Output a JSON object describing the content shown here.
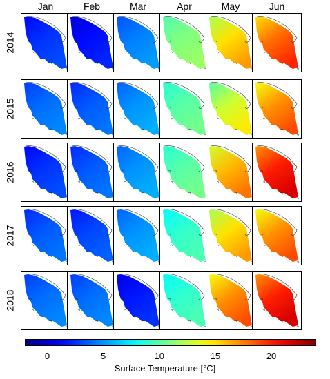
{
  "months": [
    "Jan",
    "Feb",
    "Mar",
    "Apr",
    "May",
    "Jun"
  ],
  "years": [
    "2014",
    "2015",
    "2016",
    "2017",
    "2018"
  ],
  "colorbar": {
    "label": "Surface Temperature [°C]",
    "min": -2,
    "max": 24,
    "ticks": [
      "0",
      "5",
      "10",
      "15",
      "20"
    ],
    "tick_values": [
      0,
      5,
      10,
      15,
      20
    ],
    "colormap": "jet"
  },
  "panel_temperatures_c": {
    "2014": [
      2.5,
      1.5,
      4.5,
      11,
      15,
      18
    ],
    "2015": [
      4,
      3.5,
      5,
      10,
      13,
      17
    ],
    "2016": [
      2.5,
      3.5,
      5,
      10,
      16,
      20
    ],
    "2017": [
      3.5,
      3,
      5,
      9,
      15,
      17
    ],
    "2018": [
      4,
      4,
      1.8,
      9,
      17,
      20
    ]
  }
}
